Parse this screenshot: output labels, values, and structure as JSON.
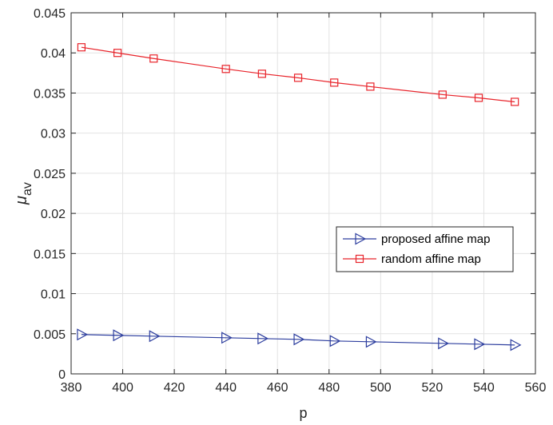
{
  "chart_data": {
    "type": "line",
    "xlabel": "p",
    "ylabel": "μ",
    "ylabel_sub": "av",
    "xlim": [
      380,
      560
    ],
    "ylim": [
      0,
      0.045
    ],
    "xticks": [
      380,
      400,
      420,
      440,
      460,
      480,
      500,
      520,
      540,
      560
    ],
    "yticks": [
      0,
      0.005,
      0.01,
      0.015,
      0.02,
      0.025,
      0.03,
      0.035,
      0.04,
      0.045
    ],
    "xtick_labels": [
      "380",
      "400",
      "420",
      "440",
      "460",
      "480",
      "500",
      "520",
      "540",
      "560"
    ],
    "ytick_labels": [
      "0",
      "0.005",
      "0.01",
      "0.015",
      "0.02",
      "0.025",
      "0.03",
      "0.035",
      "0.04",
      "0.045"
    ],
    "grid": true,
    "legend_position": "right-center",
    "x": [
      384,
      398,
      412,
      440,
      454,
      468,
      482,
      496,
      524,
      538,
      552
    ],
    "series": [
      {
        "name": "proposed affine map",
        "color": "#2e3f9f",
        "marker": "triangle-right",
        "values": [
          0.0049,
          0.0048,
          0.0047,
          0.0045,
          0.0044,
          0.0043,
          0.0041,
          0.004,
          0.0038,
          0.0037,
          0.0036
        ]
      },
      {
        "name": "random affine map",
        "color": "#e8242b",
        "marker": "square",
        "values": [
          0.0407,
          0.04,
          0.0393,
          0.038,
          0.0374,
          0.0369,
          0.0363,
          0.0358,
          0.0348,
          0.0344,
          0.0339
        ]
      }
    ]
  }
}
